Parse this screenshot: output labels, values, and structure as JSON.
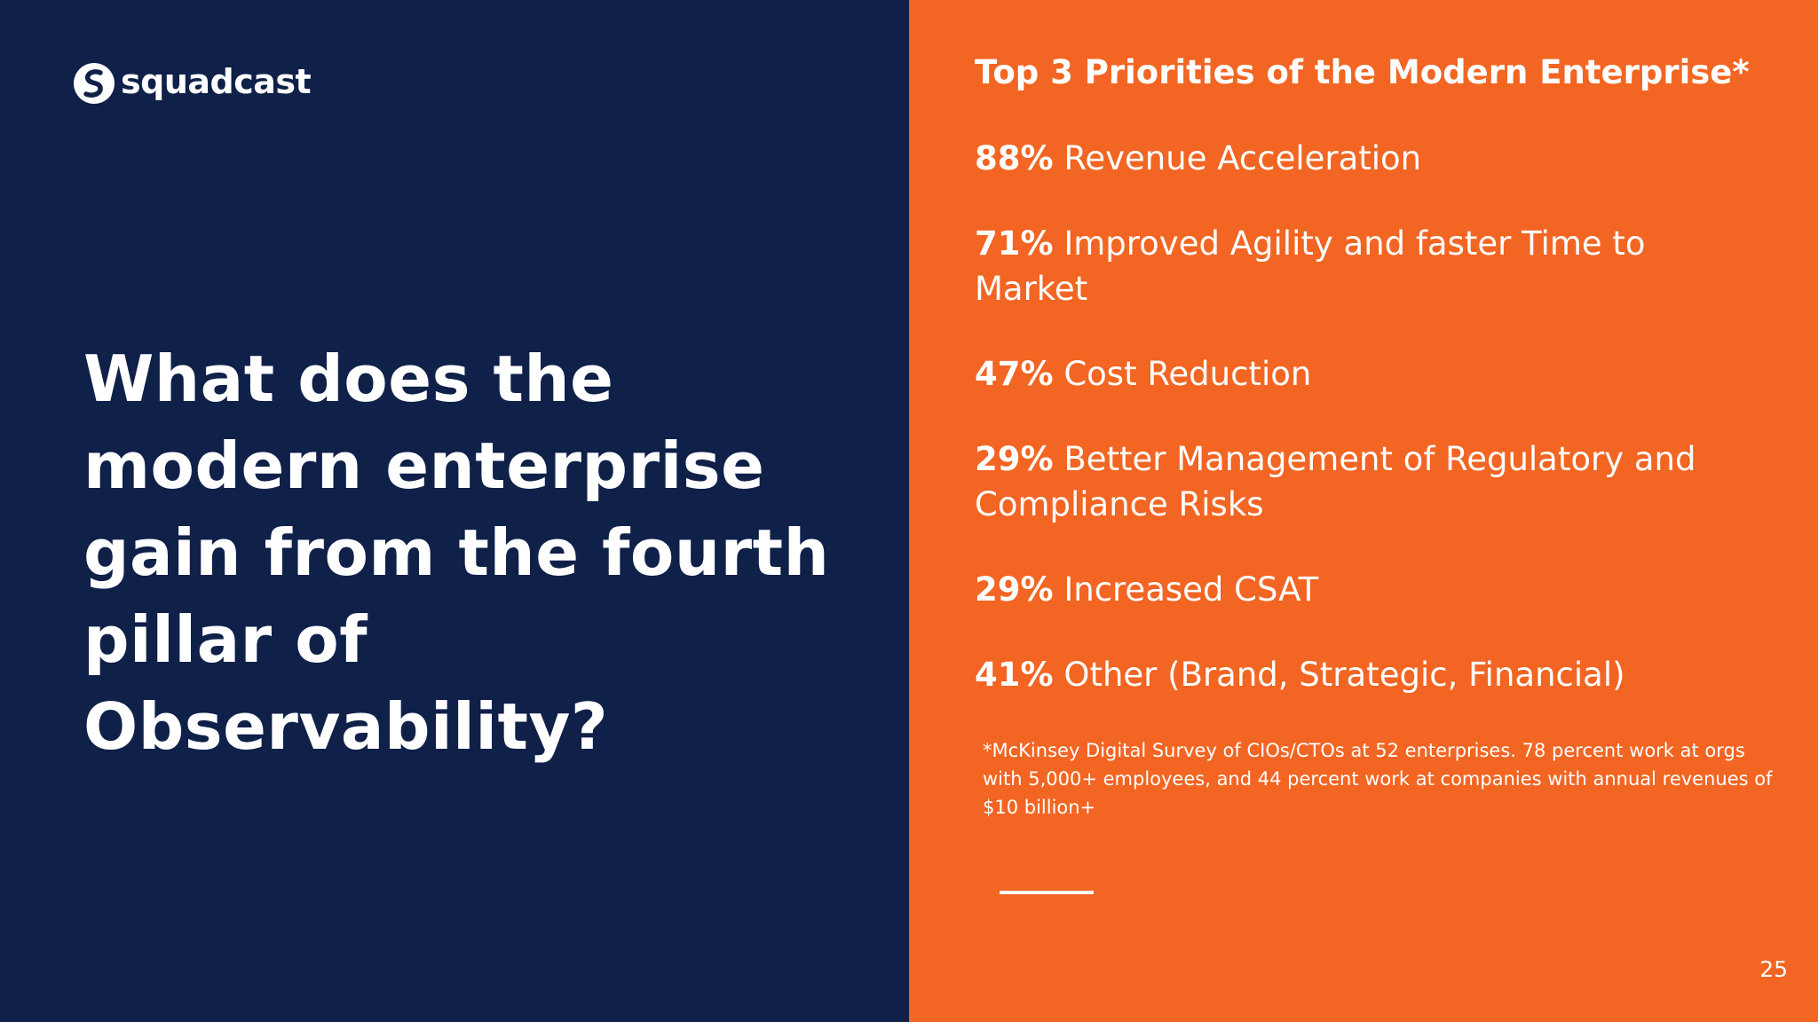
{
  "logo": {
    "text": "squadcast",
    "icon": "squadcast-logo-icon"
  },
  "headline": "What does the modern enterprise gain from the fourth pillar of Observability?",
  "priorities": {
    "title": "Top 3 Priorities of the Modern Enterprise*",
    "items": [
      {
        "percent": "88%",
        "label": "Revenue Acceleration"
      },
      {
        "percent": "71%",
        "label": "Improved Agility and faster Time to Market"
      },
      {
        "percent": "47%",
        "label": "Cost Reduction"
      },
      {
        "percent": "29%",
        "label": "Better Management of Regulatory and Compliance Risks"
      },
      {
        "percent": "29%",
        "label": "Increased CSAT"
      },
      {
        "percent": "41%",
        "label": "Other (Brand, Strategic, Financial)"
      }
    ]
  },
  "footnote": "*McKinsey Digital Survey of CIOs/CTOs at 52 enterprises. 78 percent work at orgs with 5,000+ employees, and 44 percent work at companies with annual revenues of $10 billion+",
  "page_number": "25",
  "colors": {
    "navy": "#0f2049",
    "orange": "#f26522",
    "white": "#ffffff"
  }
}
